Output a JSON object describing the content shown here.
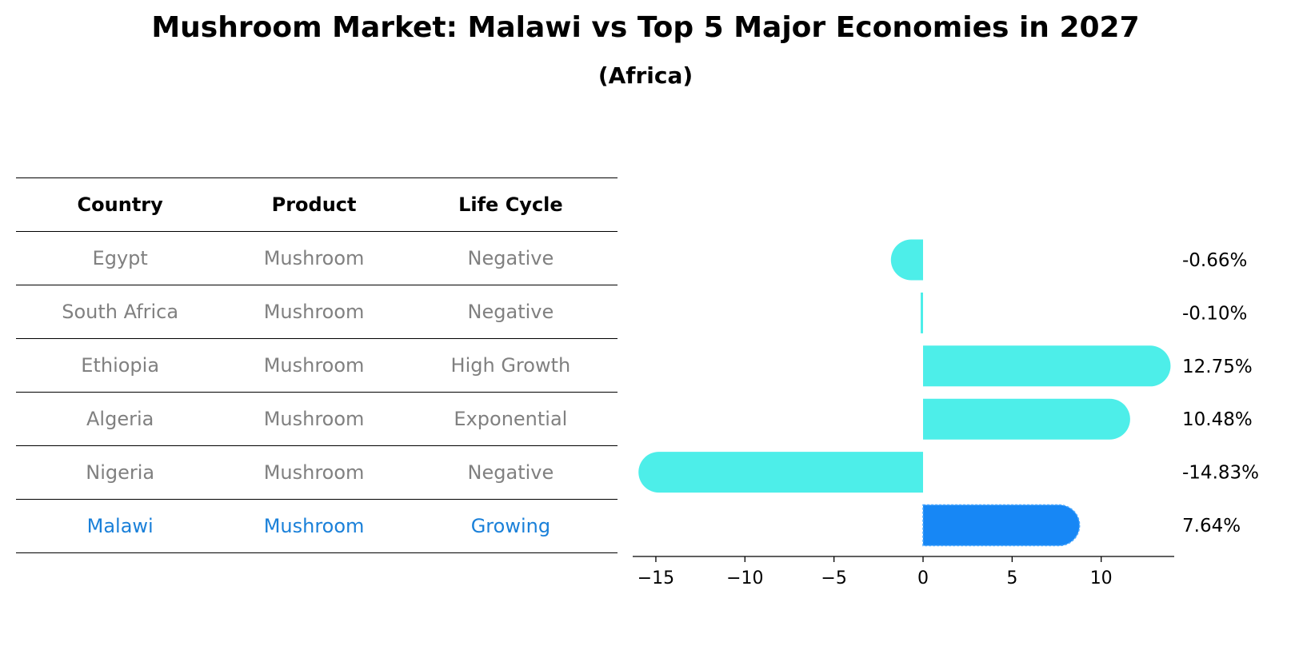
{
  "title": "Mushroom Market: Malawi vs Top 5 Major Economies in 2027",
  "subtitle": "(Africa)",
  "table": {
    "headers": [
      "Country",
      "Product",
      "Life Cycle"
    ],
    "rows": [
      {
        "country": "Egypt",
        "product": "Mushroom",
        "life_cycle": "Negative"
      },
      {
        "country": "South Africa",
        "product": "Mushroom",
        "life_cycle": "Negative"
      },
      {
        "country": "Ethiopia",
        "product": "Mushroom",
        "life_cycle": "High Growth"
      },
      {
        "country": "Algeria",
        "product": "Mushroom",
        "life_cycle": "Exponential"
      },
      {
        "country": "Nigeria",
        "product": "Mushroom",
        "life_cycle": "Negative"
      },
      {
        "country": "Malawi",
        "product": "Mushroom",
        "life_cycle": "Growing"
      }
    ]
  },
  "colors": {
    "bar": "#4deee9",
    "highlight_bar": "#1787f5",
    "highlight_text": "#1a80d9",
    "muted_text": "#808080"
  },
  "chart_data": {
    "type": "bar",
    "orientation": "horizontal",
    "categories": [
      "Egypt",
      "South Africa",
      "Ethiopia",
      "Algeria",
      "Nigeria",
      "Malawi"
    ],
    "values": [
      -0.66,
      -0.1,
      12.75,
      10.48,
      -14.83,
      7.64
    ],
    "value_labels": [
      "-0.66%",
      "-0.10%",
      "12.75%",
      "10.48%",
      "-14.83%",
      "7.64%"
    ],
    "highlight": "Malawi",
    "xticks": [
      -15,
      -10,
      -5,
      0,
      5,
      10
    ],
    "xtick_labels": [
      "−15",
      "−10",
      "−5",
      "0",
      "5",
      "10"
    ],
    "xlim": [
      -16.3,
      14.1
    ],
    "grid": false,
    "title": "Mushroom Market: Malawi vs Top 5 Major Economies in 2027"
  }
}
